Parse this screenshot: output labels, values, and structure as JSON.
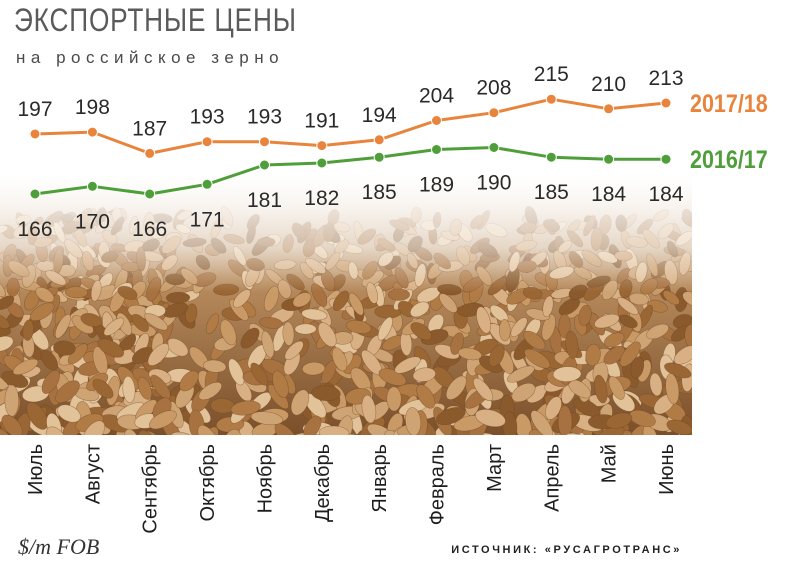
{
  "title": "ЭКСПОРТНЫЕ ЦЕНЫ",
  "subtitle": "на российское зерно",
  "unit_label": "$/т FOB",
  "source": "ИСТОЧНИК:  «РУСАГРОТРАНС»",
  "colors": {
    "series_2017_18": "#E8843C",
    "series_2016_17": "#4E9E3A",
    "text": "#333333"
  },
  "chart_data": {
    "type": "line",
    "categories": [
      "Июль",
      "Август",
      "Сентябрь",
      "Октябрь",
      "Ноябрь",
      "Декабрь",
      "Январь",
      "Февраль",
      "Март",
      "Апрель",
      "Май",
      "Июнь"
    ],
    "series": [
      {
        "name": "2017/18",
        "values": [
          197,
          198,
          187,
          193,
          193,
          191,
          194,
          204,
          208,
          215,
          210,
          213
        ],
        "color": "#E8843C",
        "label_position": "above"
      },
      {
        "name": "2016/17",
        "values": [
          166,
          170,
          166,
          171,
          181,
          182,
          185,
          189,
          190,
          185,
          184,
          184
        ],
        "color": "#4E9E3A",
        "label_position": "below"
      }
    ],
    "ylim": [
      150,
      225
    ],
    "ylabel": "$/т FOB",
    "background": "grain-photo"
  }
}
